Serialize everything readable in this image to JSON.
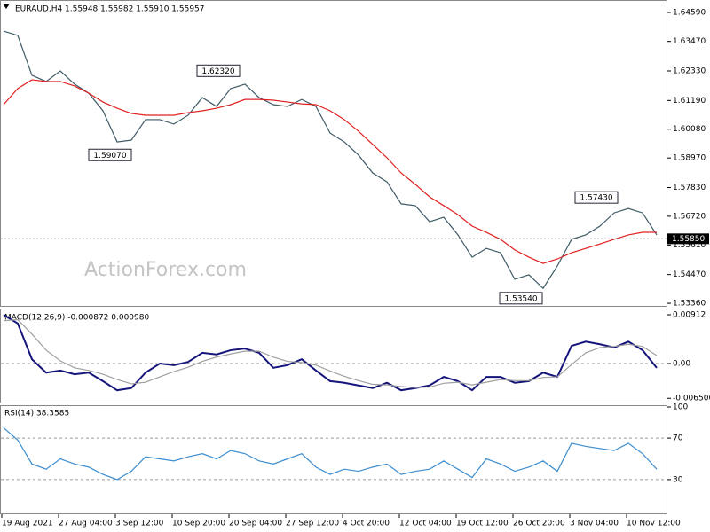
{
  "chart_data": [
    {
      "type": "line",
      "title": "EURAUD,H4 1.55948 1.55982 1.55910 1.55957",
      "watermark": "ActionForex.com",
      "ylim": [
        1.5326,
        1.65
      ],
      "yticks": [
        {
          "value": 1.6459,
          "label": "1.64590"
        },
        {
          "value": 1.6347,
          "label": "1.63470"
        },
        {
          "value": 1.6233,
          "label": "1.62330"
        },
        {
          "value": 1.6119,
          "label": "1.61190"
        },
        {
          "value": 1.6008,
          "label": "1.60080"
        },
        {
          "value": 1.5897,
          "label": "1.58970"
        },
        {
          "value": 1.5783,
          "label": "1.57830"
        },
        {
          "value": 1.5672,
          "label": "1.56720"
        },
        {
          "value": 1.5561,
          "label": "1.55610"
        },
        {
          "value": 1.5447,
          "label": "1.54470"
        },
        {
          "value": 1.5336,
          "label": "1.53360"
        }
      ],
      "series": [
        {
          "color": "#3f5b66",
          "values": [
            1.6387,
            1.637,
            1.6216,
            1.6192,
            1.6233,
            1.6182,
            1.6147,
            1.6079,
            1.5959,
            1.5966,
            1.6045,
            1.6045,
            1.6028,
            1.6062,
            1.613,
            1.6096,
            1.6165,
            1.6182,
            1.613,
            1.6103,
            1.6096,
            1.6123,
            1.6096,
            1.5993,
            1.5959,
            1.5908,
            1.5839,
            1.5805,
            1.572,
            1.5713,
            1.5651,
            1.5668,
            1.56,
            1.5514,
            1.5548,
            1.5531,
            1.5429,
            1.5446,
            1.5394,
            1.548,
            1.5583,
            1.56,
            1.5634,
            1.5685,
            1.5702,
            1.5685,
            1.56
          ]
        },
        {
          "color": "#e02020",
          "values": [
            1.6103,
            1.6165,
            1.6199,
            1.6192,
            1.6192,
            1.6175,
            1.6147,
            1.6113,
            1.6089,
            1.6069,
            1.6062,
            1.6062,
            1.6062,
            1.6072,
            1.6079,
            1.6089,
            1.6103,
            1.6123,
            1.6123,
            1.612,
            1.6113,
            1.6106,
            1.6103,
            1.6079,
            1.6045,
            1.6,
            1.5949,
            1.5898,
            1.5839,
            1.5795,
            1.5747,
            1.5713,
            1.5678,
            1.5634,
            1.561,
            1.5583,
            1.5542,
            1.5514,
            1.549,
            1.5507,
            1.5531,
            1.5548,
            1.5565,
            1.5583,
            1.56,
            1.561,
            1.561
          ]
        }
      ],
      "annotations": [
        {
          "value": 1.6232,
          "label": "1.62320"
        },
        {
          "value": 1.5907,
          "label": "1.59070"
        },
        {
          "value": 1.5743,
          "label": "1.57430"
        },
        {
          "value": 1.5354,
          "label": "1.53540"
        }
      ],
      "current_price": {
        "value": 1.5585,
        "label": "1.55850"
      }
    },
    {
      "type": "line",
      "title": "MACD(12,26,9) -0.000872 0.000980",
      "ylim": [
        -0.00746,
        0.01028
      ],
      "yticks": [
        0.00912,
        {
          "value": 0,
          "label": "0.00"
        },
        -0.006506
      ],
      "levels": [
        0
      ],
      "series": [
        {
          "color": "#14147a",
          "values": [
            0.0091,
            0.0075,
            0.0008,
            -0.0017,
            -0.0013,
            -0.002,
            -0.0017,
            -0.0033,
            -0.005,
            -0.0046,
            -0.0017,
            0,
            -0.0003,
            0.0003,
            0.002,
            0.0017,
            0.0025,
            0.0028,
            0.002,
            -0.0008,
            -0.0003,
            0.0008,
            -0.0013,
            -0.0033,
            -0.0036,
            -0.0041,
            -0.0046,
            -0.0036,
            -0.005,
            -0.0046,
            -0.0041,
            -0.0025,
            -0.0033,
            -0.005,
            -0.0025,
            -0.0025,
            -0.0036,
            -0.0033,
            -0.0017,
            -0.0025,
            0.0033,
            0.0041,
            0.0036,
            0.003,
            0.0041,
            0.0025,
            -0.0008
          ]
        },
        {
          "color": "#a0a0a0",
          "values": [
            0.008,
            0.0082,
            0.0055,
            0.0025,
            0.0005,
            -0.0008,
            -0.0013,
            -0.002,
            -0.003,
            -0.0038,
            -0.0035,
            -0.0025,
            -0.0015,
            -0.0007,
            0.0004,
            0.0012,
            0.0018,
            0.0023,
            0.0023,
            0.0012,
            0.0004,
            0.0002,
            -0.0003,
            -0.0014,
            -0.0024,
            -0.0032,
            -0.0039,
            -0.004,
            -0.0043,
            -0.0045,
            -0.0044,
            -0.0037,
            -0.0035,
            -0.004,
            -0.0035,
            -0.003,
            -0.0032,
            -0.0032,
            -0.0026,
            -0.0025,
            -0.0002,
            0.002,
            0.003,
            0.0032,
            0.0036,
            0.0032,
            0.0015
          ]
        }
      ]
    },
    {
      "type": "line",
      "title": "RSI(14) 38.3585",
      "ylim": [
        0,
        100
      ],
      "yticks": [
        100,
        70,
        30
      ],
      "levels": [
        70,
        30
      ],
      "series": [
        {
          "color": "#3c8dd0",
          "values": [
            80,
            68,
            45,
            40,
            50,
            45,
            42,
            35,
            30,
            38,
            52,
            50,
            48,
            52,
            55,
            50,
            58,
            55,
            48,
            45,
            50,
            55,
            42,
            35,
            40,
            38,
            42,
            45,
            35,
            38,
            40,
            48,
            40,
            32,
            50,
            45,
            38,
            42,
            48,
            38,
            65,
            62,
            60,
            58,
            65,
            55,
            40
          ]
        }
      ],
      "categories": [
        "19 Aug 2021",
        null,
        null,
        null,
        "27 Aug 04:00",
        null,
        null,
        null,
        "3 Sep 12:00",
        null,
        null,
        null,
        "10 Sep 20:00",
        null,
        null,
        null,
        "20 Sep 04:00",
        null,
        null,
        null,
        "27 Sep 12:00",
        null,
        null,
        null,
        "4 Oct 20:00",
        null,
        null,
        null,
        "12 Oct 04:00",
        null,
        null,
        null,
        "19 Oct 12:00",
        null,
        null,
        null,
        "26 Oct 20:00",
        null,
        null,
        null,
        "3 Nov 04:00",
        null,
        null,
        null,
        "10 Nov 12:00",
        null,
        null
      ]
    }
  ]
}
